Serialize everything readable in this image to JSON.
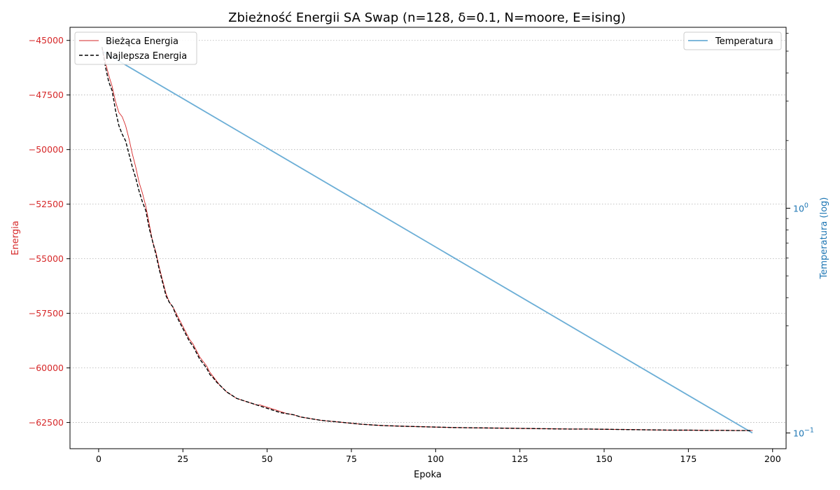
{
  "chart_data": {
    "type": "line",
    "title": "Zbieżność Energii SA Swap (n=128, δ=0.1, N=moore, E=ising)",
    "xlabel": "Epoka",
    "ylabel_left": "Energia",
    "ylabel_right": "Temperatura (log)",
    "xlim": [
      -8.5,
      204
    ],
    "ylim_left": [
      -63700,
      -44400
    ],
    "ylim_right_log10": [
      -1.07,
      0.805
    ],
    "x_ticks": [
      0,
      25,
      50,
      75,
      100,
      125,
      150,
      175,
      200
    ],
    "x_tick_labels": [
      "0",
      "25",
      "50",
      "75",
      "100",
      "125",
      "150",
      "175",
      "200"
    ],
    "y_left_ticks": [
      -45000,
      -47500,
      -50000,
      -52500,
      -55000,
      -57500,
      -60000,
      -62500
    ],
    "y_left_tick_labels": [
      "−45000",
      "−47500",
      "−50000",
      "−52500",
      "−55000",
      "−57500",
      "−60000",
      "−62500"
    ],
    "y_right_major_ticks": [
      0.1,
      1
    ],
    "y_right_major_labels": [
      {
        "base": "10",
        "exp": "−1"
      },
      {
        "base": "10",
        "exp": "0"
      }
    ],
    "y_right_minor_ticks": [
      0.2,
      0.3,
      0.4,
      0.5,
      0.6,
      0.7,
      0.8,
      0.9,
      2,
      3,
      4,
      5,
      6
    ],
    "grid": "horizontal-dotted",
    "colors": {
      "current": "#d62728",
      "best": "#000000",
      "temperature": "#6baed6",
      "left_axis": "#d62728",
      "right_axis": "#1f77b4",
      "grid": "#b0b0b0"
    },
    "legend_left": {
      "placement": "top-left",
      "entries": [
        {
          "label": "Bieżąca Energia",
          "series": "current"
        },
        {
          "label": "Najlepsza Energia",
          "series": "best"
        }
      ]
    },
    "legend_right": {
      "placement": "top-right",
      "entries": [
        {
          "label": "Temperatura",
          "series": "temperature"
        }
      ]
    },
    "series": [
      {
        "name": "Bieżąca Energia",
        "key": "current",
        "axis": "left",
        "x": [
          1,
          2,
          3,
          4,
          5,
          6,
          7,
          8,
          9,
          10,
          11,
          12,
          13,
          14,
          15,
          16,
          17,
          18,
          19,
          20,
          21,
          22,
          23,
          24,
          25,
          26,
          27,
          28,
          29,
          30,
          31,
          32,
          33,
          34,
          35,
          36,
          37,
          38,
          39,
          40,
          41,
          42,
          43,
          44,
          45,
          46,
          47,
          48,
          49,
          50,
          52,
          54,
          56,
          58,
          60,
          62,
          64,
          66,
          68,
          70,
          72,
          74,
          76,
          78,
          80,
          83,
          86,
          90,
          95,
          100,
          105,
          110,
          115,
          120,
          125,
          130,
          135,
          140,
          145,
          150,
          155,
          160,
          165,
          170,
          175,
          180,
          185,
          190,
          194
        ],
        "y": [
          -45300,
          -46000,
          -46600,
          -47100,
          -47800,
          -48300,
          -48500,
          -48900,
          -49500,
          -50200,
          -50800,
          -51500,
          -52000,
          -52600,
          -53400,
          -54200,
          -54700,
          -55400,
          -56000,
          -56600,
          -57000,
          -57200,
          -57500,
          -57800,
          -58100,
          -58400,
          -58700,
          -58900,
          -59200,
          -59500,
          -59700,
          -59900,
          -60200,
          -60400,
          -60600,
          -60800,
          -60950,
          -61100,
          -61200,
          -61300,
          -61400,
          -61450,
          -61500,
          -61550,
          -61600,
          -61650,
          -61700,
          -61700,
          -61750,
          -61800,
          -61900,
          -62000,
          -62100,
          -62150,
          -62250,
          -62300,
          -62350,
          -62400,
          -62430,
          -62460,
          -62490,
          -62520,
          -62550,
          -62580,
          -62600,
          -62630,
          -62650,
          -62670,
          -62690,
          -62710,
          -62730,
          -62740,
          -62750,
          -62760,
          -62770,
          -62780,
          -62790,
          -62800,
          -62800,
          -62810,
          -62820,
          -62830,
          -62840,
          -62850,
          -62850,
          -62860,
          -62860,
          -62870,
          -62870
        ]
      },
      {
        "name": "Najlepsza Energia",
        "key": "best",
        "axis": "left",
        "x": [
          1,
          2,
          3,
          4,
          5,
          6,
          7,
          8,
          9,
          10,
          11,
          12,
          13,
          14,
          15,
          16,
          17,
          18,
          19,
          20,
          21,
          22,
          23,
          24,
          25,
          26,
          27,
          28,
          29,
          30,
          31,
          32,
          33,
          34,
          35,
          36,
          37,
          38,
          39,
          40,
          41,
          42,
          43,
          44,
          45,
          46,
          47,
          48,
          49,
          50,
          52,
          54,
          56,
          58,
          60,
          62,
          64,
          66,
          68,
          70,
          72,
          74,
          76,
          78,
          80,
          83,
          86,
          90,
          95,
          100,
          105,
          110,
          115,
          120,
          125,
          130,
          135,
          140,
          145,
          150,
          155,
          160,
          165,
          170,
          175,
          180,
          185,
          190,
          194
        ],
        "y": [
          -45300,
          -46200,
          -46900,
          -47300,
          -48200,
          -48900,
          -49300,
          -49600,
          -50200,
          -50800,
          -51300,
          -51900,
          -52400,
          -52800,
          -53600,
          -54200,
          -54800,
          -55500,
          -56100,
          -56700,
          -57000,
          -57200,
          -57600,
          -57900,
          -58200,
          -58500,
          -58800,
          -59000,
          -59300,
          -59600,
          -59800,
          -60000,
          -60300,
          -60450,
          -60650,
          -60800,
          -60950,
          -61100,
          -61200,
          -61300,
          -61400,
          -61450,
          -61500,
          -61550,
          -61600,
          -61650,
          -61700,
          -61750,
          -61800,
          -61850,
          -61950,
          -62050,
          -62100,
          -62150,
          -62250,
          -62300,
          -62350,
          -62400,
          -62430,
          -62460,
          -62490,
          -62520,
          -62550,
          -62580,
          -62600,
          -62630,
          -62650,
          -62670,
          -62690,
          -62710,
          -62730,
          -62740,
          -62750,
          -62760,
          -62770,
          -62780,
          -62790,
          -62800,
          -62800,
          -62810,
          -62820,
          -62830,
          -62840,
          -62850,
          -62850,
          -62860,
          -62860,
          -62870,
          -62870
        ]
      },
      {
        "name": "Temperatura",
        "key": "temperature",
        "axis": "right",
        "x": [
          1,
          194
        ],
        "y": [
          5,
          0.1
        ]
      }
    ]
  }
}
